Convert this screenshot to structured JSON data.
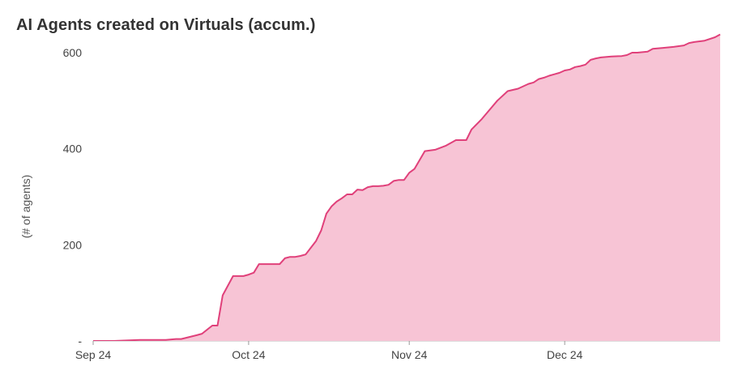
{
  "chart_data": {
    "type": "area",
    "title": "AI Agents created on Virtuals (accum.)",
    "xlabel": "",
    "ylabel": "(# of agents)",
    "ylim": [
      0,
      600
    ],
    "yticks": [
      0,
      200,
      400,
      600
    ],
    "ytick_labels": [
      "-",
      "200",
      "400",
      "600"
    ],
    "xlim": [
      "2024-09-01",
      "2024-12-31"
    ],
    "xticks": [
      {
        "date": "2024-09-01",
        "label": "Sep 24"
      },
      {
        "date": "2024-10-01",
        "label": "Oct 24"
      },
      {
        "date": "2024-11-01",
        "label": "Nov 24"
      },
      {
        "date": "2024-12-01",
        "label": "Dec 24"
      }
    ],
    "grid": false,
    "legend": "none",
    "colors": {
      "line": "#e0407a",
      "fill": "#f7c4d5",
      "text": "#333333"
    },
    "series": [
      {
        "x": [
          "2024-09-01",
          "2024-09-05",
          "2024-09-10",
          "2024-09-11",
          "2024-09-15",
          "2024-09-17",
          "2024-09-18",
          "2024-09-21",
          "2024-09-22",
          "2024-09-24",
          "2024-09-25",
          "2024-09-26",
          "2024-09-28",
          "2024-09-29",
          "2024-09-30",
          "2024-10-01",
          "2024-10-02",
          "2024-10-03",
          "2024-10-04",
          "2024-10-05",
          "2024-10-07",
          "2024-10-08",
          "2024-10-09",
          "2024-10-10",
          "2024-10-11",
          "2024-10-12",
          "2024-10-14",
          "2024-10-15",
          "2024-10-16",
          "2024-10-17",
          "2024-10-18",
          "2024-10-19",
          "2024-10-20",
          "2024-10-21",
          "2024-10-22",
          "2024-10-23",
          "2024-10-24",
          "2024-10-25",
          "2024-10-26",
          "2024-10-27",
          "2024-10-28",
          "2024-10-29",
          "2024-10-30",
          "2024-10-31",
          "2024-11-01",
          "2024-11-02",
          "2024-11-04",
          "2024-11-06",
          "2024-11-08",
          "2024-11-10",
          "2024-11-12",
          "2024-11-13",
          "2024-11-15",
          "2024-11-18",
          "2024-11-20",
          "2024-11-22",
          "2024-11-24",
          "2024-11-25",
          "2024-11-26",
          "2024-11-27",
          "2024-11-28",
          "2024-11-29",
          "2024-11-30",
          "2024-12-01",
          "2024-12-02",
          "2024-12-03",
          "2024-12-04",
          "2024-12-05",
          "2024-12-06",
          "2024-12-07",
          "2024-12-08",
          "2024-12-10",
          "2024-12-12",
          "2024-12-13",
          "2024-12-14",
          "2024-12-15",
          "2024-12-17",
          "2024-12-18",
          "2024-12-20",
          "2024-12-22",
          "2024-12-24",
          "2024-12-25",
          "2024-12-26",
          "2024-12-28",
          "2024-12-30",
          "2024-12-31"
        ],
        "values": [
          0,
          0,
          2,
          2,
          2,
          4,
          4,
          12,
          15,
          32,
          32,
          95,
          135,
          135,
          135,
          138,
          142,
          160,
          160,
          160,
          160,
          172,
          175,
          175,
          177,
          180,
          208,
          230,
          265,
          280,
          290,
          297,
          305,
          305,
          315,
          314,
          320,
          322,
          322,
          323,
          325,
          333,
          335,
          335,
          350,
          358,
          395,
          398,
          406,
          418,
          418,
          440,
          462,
          500,
          520,
          525,
          535,
          538,
          545,
          548,
          552,
          555,
          558,
          563,
          565,
          570,
          572,
          575,
          585,
          588,
          590,
          592,
          593,
          595,
          600,
          600,
          602,
          608,
          610,
          612,
          615,
          620,
          622,
          625,
          632,
          638
        ]
      }
    ]
  }
}
